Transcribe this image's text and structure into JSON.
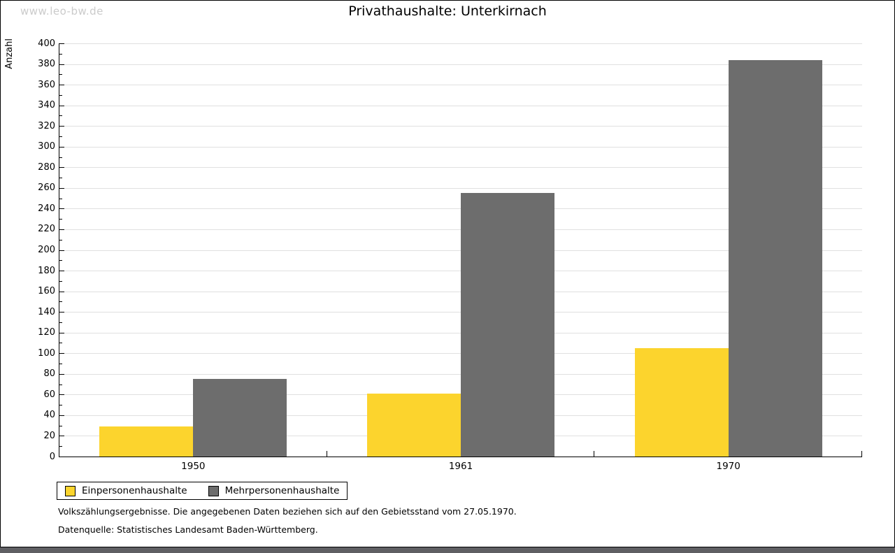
{
  "watermark": "www.leo-bw.de",
  "title": "Privathaushalte: Unterkirnach",
  "chart_data": {
    "type": "bar",
    "title": "Privathaushalte: Unterkirnach",
    "categories": [
      "1950",
      "1961",
      "1970"
    ],
    "series": [
      {
        "name": "Einpersonenhaushalte",
        "color": "#fcd42d",
        "values": [
          29,
          61,
          105
        ]
      },
      {
        "name": "Mehrpersonenhaushalte",
        "color": "#6d6d6d",
        "values": [
          75,
          255,
          384
        ]
      }
    ],
    "xlabel": "",
    "ylabel": "Anzahl",
    "ylim": [
      0,
      400
    ],
    "ytick_major": 20,
    "ytick_minor": 10,
    "grid": true,
    "gridline_color": "#e0e0e0",
    "legend_position": "bottom-left"
  },
  "footnotes": [
    "Volkszählungsergebnisse. Die angegebenen Daten beziehen sich auf den Gebietsstand vom 27.05.1970.",
    "Datenquelle: Statistisches Landesamt Baden-Württemberg."
  ]
}
